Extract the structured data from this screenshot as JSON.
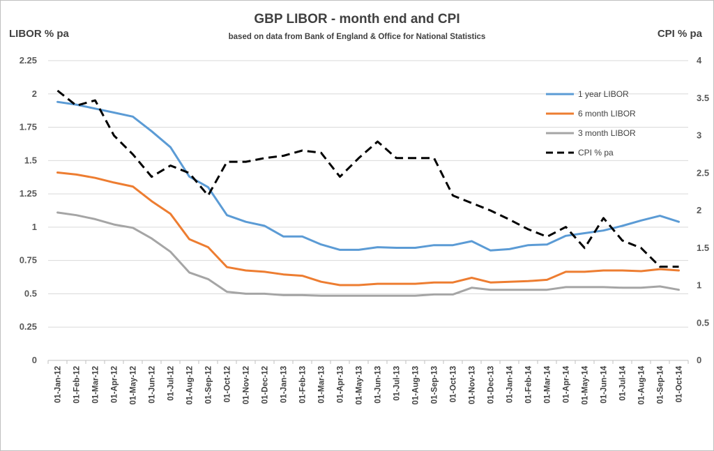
{
  "chart_data": {
    "type": "line",
    "title": "GBP LIBOR - month end and CPI",
    "subtitle": "based on data from Bank of England & Office for National Statistics",
    "ylabel": "LIBOR % pa",
    "y2label": "CPI % pa",
    "ylim": [
      0,
      2.25
    ],
    "y2lim": [
      0,
      4
    ],
    "yticks": [
      "0",
      "0.25",
      "0.5",
      "0.75",
      "1",
      "1.25",
      "1.5",
      "1.75",
      "2",
      "2.25"
    ],
    "y2ticks": [
      "0",
      "0.5",
      "1",
      "1.5",
      "2",
      "2.5",
      "3",
      "3.5",
      "4"
    ],
    "grid": true,
    "legend_position": "top-right",
    "categories": [
      "01-Jan-12",
      "01-Feb-12",
      "01-Mar-12",
      "01-Apr-12",
      "01-May-12",
      "01-Jun-12",
      "01-Jul-12",
      "01-Aug-12",
      "01-Sep-12",
      "01-Oct-12",
      "01-Nov-12",
      "01-Dec-12",
      "01-Jan-13",
      "01-Feb-13",
      "01-Mar-13",
      "01-Apr-13",
      "01-May-13",
      "01-Jun-13",
      "01-Jul-13",
      "01-Aug-13",
      "01-Sep-13",
      "01-Oct-13",
      "01-Nov-13",
      "01-Dec-13",
      "01-Jan-14",
      "01-Feb-14",
      "01-Mar-14",
      "01-Apr-14",
      "01-May-14",
      "01-Jun-14",
      "01-Jul-14",
      "01-Aug-14",
      "01-Sep-14",
      "01-Oct-14"
    ],
    "series": [
      {
        "name": "1 year LIBOR",
        "axis": "left",
        "color": "#5b9bd5",
        "dashed": false,
        "values": [
          1.94,
          1.92,
          1.89,
          1.86,
          1.83,
          1.72,
          1.6,
          1.38,
          1.3,
          1.09,
          1.04,
          1.01,
          0.93,
          0.93,
          0.87,
          0.83,
          0.83,
          0.85,
          0.845,
          0.845,
          0.865,
          0.865,
          0.895,
          0.825,
          0.835,
          0.865,
          0.87,
          0.935,
          0.955,
          0.975,
          1.01,
          1.05,
          1.085,
          1.04
        ]
      },
      {
        "name": "6 month LIBOR",
        "axis": "left",
        "color": "#ed7d31",
        "dashed": false,
        "values": [
          1.41,
          1.395,
          1.37,
          1.335,
          1.305,
          1.195,
          1.1,
          0.91,
          0.85,
          0.7,
          0.675,
          0.665,
          0.645,
          0.635,
          0.59,
          0.565,
          0.565,
          0.575,
          0.575,
          0.575,
          0.585,
          0.585,
          0.62,
          0.585,
          0.59,
          0.595,
          0.605,
          0.665,
          0.665,
          0.675,
          0.675,
          0.67,
          0.685,
          0.675
        ]
      },
      {
        "name": "3 month LIBOR",
        "axis": "left",
        "color": "#a5a5a5",
        "dashed": false,
        "values": [
          1.11,
          1.09,
          1.06,
          1.02,
          0.995,
          0.915,
          0.815,
          0.66,
          0.61,
          0.515,
          0.5,
          0.5,
          0.49,
          0.49,
          0.485,
          0.485,
          0.485,
          0.485,
          0.485,
          0.485,
          0.495,
          0.495,
          0.545,
          0.53,
          0.53,
          0.53,
          0.53,
          0.55,
          0.55,
          0.55,
          0.545,
          0.545,
          0.555,
          0.53
        ]
      },
      {
        "name": "CPI % pa",
        "axis": "right",
        "color": "#000000",
        "dashed": true,
        "values": [
          3.6,
          3.4,
          3.47,
          3.0,
          2.75,
          2.45,
          2.6,
          2.5,
          2.2,
          2.65,
          2.65,
          2.7,
          2.73,
          2.8,
          2.77,
          2.45,
          2.7,
          2.92,
          2.7,
          2.7,
          2.7,
          2.2,
          2.1,
          2.0,
          1.88,
          1.75,
          1.65,
          1.78,
          1.5,
          1.9,
          1.6,
          1.5,
          1.25,
          1.25
        ]
      }
    ]
  }
}
